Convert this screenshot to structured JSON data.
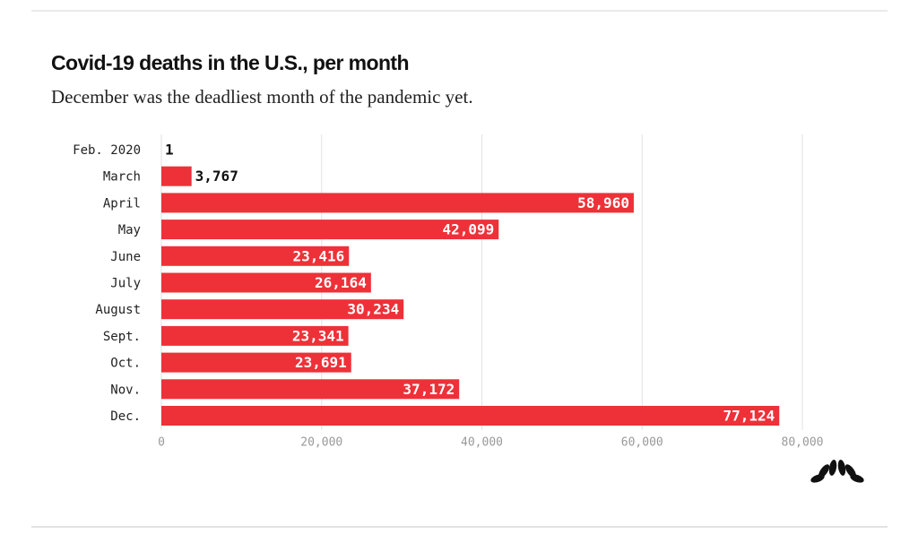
{
  "chart_data": {
    "type": "bar",
    "orientation": "horizontal",
    "title": "Covid-19 deaths in the U.S., per month",
    "subtitle": "December was the deadliest month of the pandemic yet.",
    "categories": [
      "Feb. 2020",
      "March",
      "April",
      "May",
      "June",
      "July",
      "August",
      "Sept.",
      "Oct.",
      "Nov.",
      "Dec."
    ],
    "values": [
      1,
      3767,
      58960,
      42099,
      23416,
      26164,
      30234,
      23341,
      23691,
      37172,
      77124
    ],
    "value_labels": [
      "1",
      "3,767",
      "58,960",
      "42,099",
      "23,416",
      "26,164",
      "30,234",
      "23,341",
      "23,691",
      "37,172",
      "77,124"
    ],
    "color": "#ee3138",
    "xlim": [
      0,
      80000
    ],
    "xticks": [
      0,
      {
        "value": 20000,
        "label": "20,000"
      },
      {
        "value": 40000,
        "label": "40,000"
      },
      {
        "value": 60000,
        "label": "60,000"
      },
      {
        "value": 80000,
        "label": "80,000"
      }
    ],
    "grid": true
  }
}
